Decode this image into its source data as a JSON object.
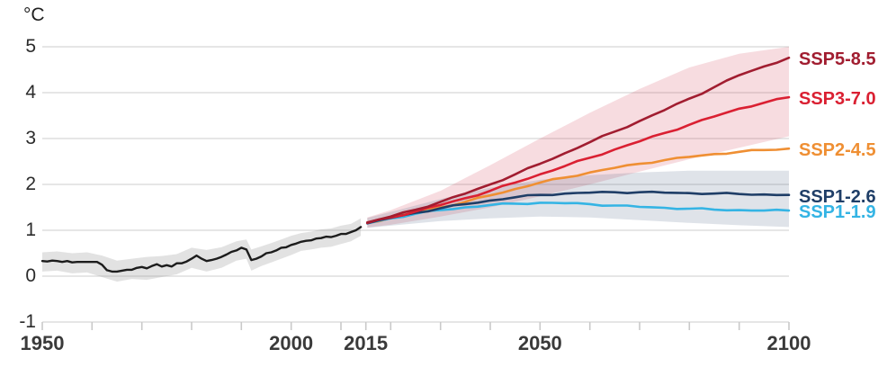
{
  "chart_data": {
    "type": "line",
    "title": "",
    "unit_label": "°C",
    "x_axis": {
      "min": 1950,
      "max": 2100,
      "ticks": [
        1950,
        1960,
        1970,
        1980,
        1990,
        2000,
        2010,
        2015,
        2020,
        2030,
        2040,
        2050,
        2060,
        2070,
        2080,
        2090,
        2100
      ],
      "labeled_ticks": [
        1950,
        2000,
        2015,
        2050,
        2100
      ]
    },
    "y_axis": {
      "min": -1,
      "max": 5,
      "ticks": [
        5,
        4,
        3,
        2,
        1,
        0,
        -1
      ],
      "gridline_color": "#d8d8d8",
      "tick_color": "#c9c9c9"
    },
    "historical": {
      "name": "observed-temperature",
      "color": "#1c1c1c",
      "x": [
        1950,
        1951,
        1952,
        1953,
        1954,
        1955,
        1956,
        1957,
        1958,
        1959,
        1960,
        1961,
        1962,
        1963,
        1964,
        1965,
        1966,
        1967,
        1968,
        1969,
        1970,
        1971,
        1972,
        1973,
        1974,
        1975,
        1976,
        1977,
        1978,
        1979,
        1980,
        1981,
        1982,
        1983,
        1984,
        1985,
        1986,
        1987,
        1988,
        1989,
        1990,
        1991,
        1992,
        1993,
        1994,
        1995,
        1996,
        1997,
        1998,
        1999,
        2000,
        2001,
        2002,
        2003,
        2004,
        2005,
        2006,
        2007,
        2008,
        2009,
        2010,
        2011,
        2012,
        2013,
        2014
      ],
      "values": [
        0.33,
        0.32,
        0.34,
        0.33,
        0.31,
        0.33,
        0.3,
        0.31,
        0.31,
        0.31,
        0.31,
        0.31,
        0.25,
        0.13,
        0.1,
        0.1,
        0.12,
        0.14,
        0.14,
        0.18,
        0.2,
        0.17,
        0.22,
        0.26,
        0.21,
        0.24,
        0.21,
        0.28,
        0.28,
        0.32,
        0.38,
        0.45,
        0.38,
        0.33,
        0.35,
        0.38,
        0.42,
        0.47,
        0.53,
        0.56,
        0.62,
        0.58,
        0.35,
        0.38,
        0.43,
        0.5,
        0.52,
        0.56,
        0.62,
        0.63,
        0.68,
        0.71,
        0.75,
        0.77,
        0.78,
        0.82,
        0.83,
        0.86,
        0.85,
        0.88,
        0.92,
        0.92,
        0.96,
        1.0,
        1.07
      ]
    },
    "bands": [
      {
        "name": "historical-uncertainty-band",
        "color": "rgba(140,140,140,0.25)",
        "x": [
          1950,
          1953,
          1956,
          1959,
          1962,
          1965,
          1968,
          1971,
          1974,
          1977,
          1980,
          1983,
          1986,
          1989,
          1991,
          1992,
          1994,
          1996,
          1998,
          2000,
          2002,
          2004,
          2006,
          2008,
          2010,
          2012,
          2014
        ],
        "low": [
          0.1,
          0.12,
          0.06,
          0.08,
          -0.02,
          -0.12,
          -0.06,
          -0.08,
          -0.02,
          0.04,
          0.18,
          0.1,
          0.18,
          0.34,
          0.38,
          0.12,
          0.22,
          0.3,
          0.38,
          0.46,
          0.55,
          0.58,
          0.62,
          0.64,
          0.7,
          0.76,
          0.88
        ],
        "high": [
          0.52,
          0.54,
          0.5,
          0.52,
          0.45,
          0.34,
          0.38,
          0.42,
          0.44,
          0.48,
          0.62,
          0.57,
          0.63,
          0.76,
          0.8,
          0.58,
          0.65,
          0.72,
          0.8,
          0.88,
          0.94,
          0.97,
          1.02,
          1.04,
          1.1,
          1.14,
          1.26
        ]
      },
      {
        "name": "high-scenario-band",
        "color": "rgba(205,40,62,0.16)",
        "x": [
          2015.3,
          2020,
          2030,
          2040,
          2050,
          2060,
          2070,
          2080,
          2090,
          2100
        ],
        "low": [
          1.06,
          1.12,
          1.3,
          1.5,
          1.74,
          2.0,
          2.28,
          2.55,
          2.8,
          3.05
        ],
        "high": [
          1.28,
          1.44,
          1.86,
          2.42,
          3.0,
          3.56,
          4.08,
          4.55,
          4.85,
          5.0
        ]
      },
      {
        "name": "low-scenario-band",
        "color": "rgba(75,100,135,0.18)",
        "x": [
          2015.3,
          2020,
          2030,
          2040,
          2050,
          2060,
          2070,
          2080,
          2090,
          2100
        ],
        "low": [
          1.05,
          1.1,
          1.2,
          1.26,
          1.3,
          1.28,
          1.22,
          1.16,
          1.11,
          1.07
        ],
        "high": [
          1.27,
          1.4,
          1.68,
          1.93,
          2.1,
          2.2,
          2.26,
          2.3,
          2.3,
          2.3
        ]
      }
    ],
    "series_x": [
      2015.3,
      2020,
      2025,
      2030,
      2035,
      2040,
      2045,
      2050,
      2055,
      2060,
      2065,
      2070,
      2075,
      2080,
      2085,
      2090,
      2095,
      2100
    ],
    "series": [
      {
        "name": "SSP5-8.5",
        "color": "#a11d30",
        "values": [
          1.17,
          1.3,
          1.45,
          1.62,
          1.8,
          2.0,
          2.22,
          2.45,
          2.68,
          2.92,
          3.15,
          3.38,
          3.62,
          3.87,
          4.12,
          4.38,
          4.57,
          4.76
        ]
      },
      {
        "name": "SSP3-7.0",
        "color": "#da2032",
        "values": [
          1.16,
          1.28,
          1.41,
          1.55,
          1.7,
          1.86,
          2.04,
          2.22,
          2.4,
          2.58,
          2.76,
          2.94,
          3.12,
          3.3,
          3.48,
          3.65,
          3.78,
          3.9
        ]
      },
      {
        "name": "SSP2-4.5",
        "color": "#ef8f33",
        "values": [
          1.16,
          1.27,
          1.38,
          1.5,
          1.62,
          1.76,
          1.9,
          2.04,
          2.15,
          2.26,
          2.36,
          2.45,
          2.53,
          2.6,
          2.66,
          2.71,
          2.75,
          2.78
        ]
      },
      {
        "name": "SSP1-2.6",
        "color": "#1f3e67",
        "values": [
          1.15,
          1.27,
          1.38,
          1.48,
          1.57,
          1.65,
          1.72,
          1.77,
          1.8,
          1.82,
          1.83,
          1.83,
          1.82,
          1.81,
          1.8,
          1.79,
          1.78,
          1.77
        ]
      },
      {
        "name": "SSP1-1.9",
        "color": "#34b4e4",
        "values": [
          1.15,
          1.26,
          1.36,
          1.44,
          1.5,
          1.55,
          1.58,
          1.6,
          1.59,
          1.57,
          1.54,
          1.51,
          1.49,
          1.47,
          1.45,
          1.44,
          1.43,
          1.43
        ]
      }
    ]
  }
}
